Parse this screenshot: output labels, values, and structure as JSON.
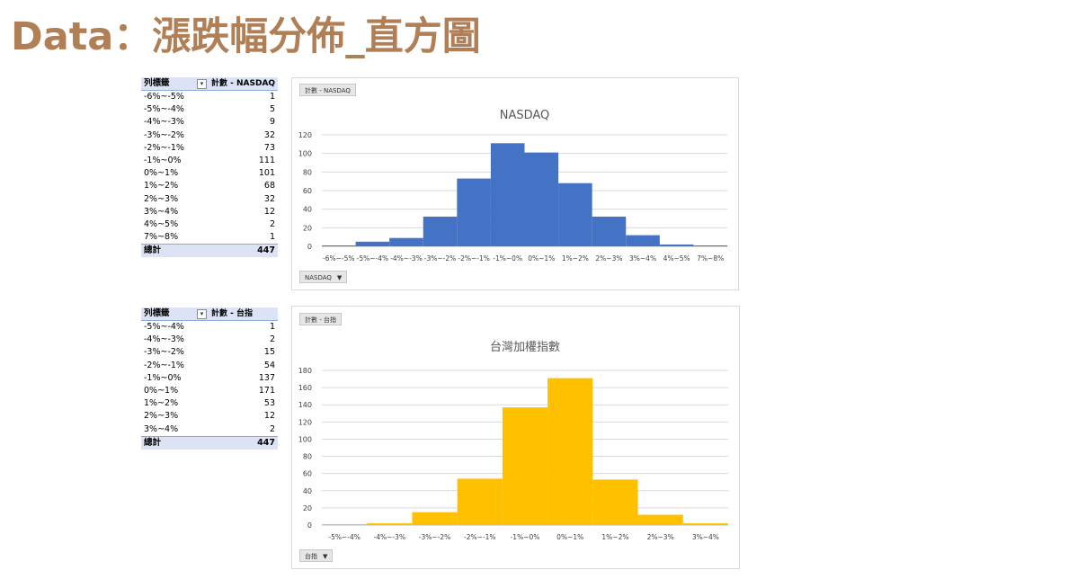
{
  "page": {
    "title": "Data：漲跌幅分佈_直方圖"
  },
  "pivots": [
    {
      "row_label": "列標籤",
      "value_label": "計數 - NASDAQ",
      "rows": [
        {
          "k": "-6%~-5%",
          "v": "1"
        },
        {
          "k": "-5%~-4%",
          "v": "5"
        },
        {
          "k": "-4%~-3%",
          "v": "9"
        },
        {
          "k": "-3%~-2%",
          "v": "32"
        },
        {
          "k": "-2%~-1%",
          "v": "73"
        },
        {
          "k": "-1%~0%",
          "v": "111"
        },
        {
          "k": "0%~1%",
          "v": "101"
        },
        {
          "k": "1%~2%",
          "v": "68"
        },
        {
          "k": "2%~3%",
          "v": "32"
        },
        {
          "k": "3%~4%",
          "v": "12"
        },
        {
          "k": "4%~5%",
          "v": "2"
        },
        {
          "k": "7%~8%",
          "v": "1"
        }
      ],
      "total_label": "總計",
      "total_value": "447"
    },
    {
      "row_label": "列標籤",
      "value_label": "計數 - 台指",
      "rows": [
        {
          "k": "-5%~-4%",
          "v": "1"
        },
        {
          "k": "-4%~-3%",
          "v": "2"
        },
        {
          "k": "-3%~-2%",
          "v": "15"
        },
        {
          "k": "-2%~-1%",
          "v": "54"
        },
        {
          "k": "-1%~0%",
          "v": "137"
        },
        {
          "k": "0%~1%",
          "v": "171"
        },
        {
          "k": "1%~2%",
          "v": "53"
        },
        {
          "k": "2%~3%",
          "v": "12"
        },
        {
          "k": "3%~4%",
          "v": "2"
        }
      ],
      "total_label": "總計",
      "total_value": "447"
    }
  ],
  "charts": [
    {
      "value_button": "計數 - NASDAQ",
      "axis_button": "NASDAQ"
    },
    {
      "value_button": "計數 - 台指",
      "axis_button": "台指"
    }
  ],
  "chart_data": [
    {
      "type": "bar",
      "title": "NASDAQ",
      "color": "#4472c4",
      "categories": [
        "-6%~-5%",
        "-5%~-4%",
        "-4%~-3%",
        "-3%~-2%",
        "-2%~-1%",
        "-1%~0%",
        "0%~1%",
        "1%~2%",
        "2%~3%",
        "3%~4%",
        "4%~5%",
        "7%~8%"
      ],
      "values": [
        1,
        5,
        9,
        32,
        73,
        111,
        101,
        68,
        32,
        12,
        2,
        1
      ],
      "ylim": [
        0,
        120
      ],
      "yticks": [
        0,
        20,
        40,
        60,
        80,
        100,
        120
      ],
      "grid": true,
      "gap": 0
    },
    {
      "type": "bar",
      "title": "台灣加權指數",
      "color": "#ffc000",
      "categories": [
        "-5%~-4%",
        "-4%~-3%",
        "-3%~-2%",
        "-2%~-1%",
        "-1%~0%",
        "0%~1%",
        "1%~2%",
        "2%~3%",
        "3%~4%"
      ],
      "values": [
        1,
        2,
        15,
        54,
        137,
        171,
        53,
        12,
        2
      ],
      "ylim": [
        0,
        180
      ],
      "yticks": [
        0,
        20,
        40,
        60,
        80,
        100,
        120,
        140,
        160,
        180
      ],
      "grid": true,
      "gap": 0
    }
  ]
}
